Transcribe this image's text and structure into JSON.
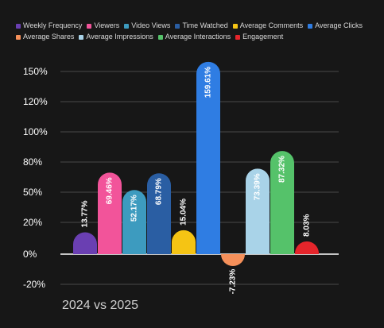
{
  "chart_data": {
    "type": "bar",
    "subtitle": "2024 vs 2025",
    "y_ticks": [
      "150%",
      "120%",
      "100%",
      "80%",
      "50%",
      "20%",
      "0%",
      "-20%"
    ],
    "ylim": [
      -20,
      150
    ],
    "series": [
      {
        "name": "Weekly Frequency",
        "value": 13.77,
        "label": "13.77%",
        "color": "#6a3fb2"
      },
      {
        "name": "Viewers",
        "value": 69.46,
        "label": "69.46%",
        "color": "#f2549a"
      },
      {
        "name": "Video Views",
        "value": 52.17,
        "label": "52.17%",
        "color": "#3d9bbf"
      },
      {
        "name": "Time Watched",
        "value": 68.79,
        "label": "68.79%",
        "color": "#2a5ea3"
      },
      {
        "name": "Average Comments",
        "value": 15.04,
        "label": "15.04%",
        "color": "#f5c414"
      },
      {
        "name": "Average Clicks",
        "value": 159.61,
        "label": "159.61%",
        "color": "#2f7de3"
      },
      {
        "name": "Average Shares",
        "value": -7.23,
        "label": "-7.23%",
        "color": "#f5905a"
      },
      {
        "name": "Average Impressions",
        "value": 73.39,
        "label": "73.39%",
        "color": "#a9d3e8"
      },
      {
        "name": "Average Interactions",
        "value": 87.32,
        "label": "87.32%",
        "color": "#55c26a"
      },
      {
        "name": "Engagement",
        "value": 8.03,
        "label": "8.03%",
        "color": "#e5252b"
      }
    ]
  }
}
